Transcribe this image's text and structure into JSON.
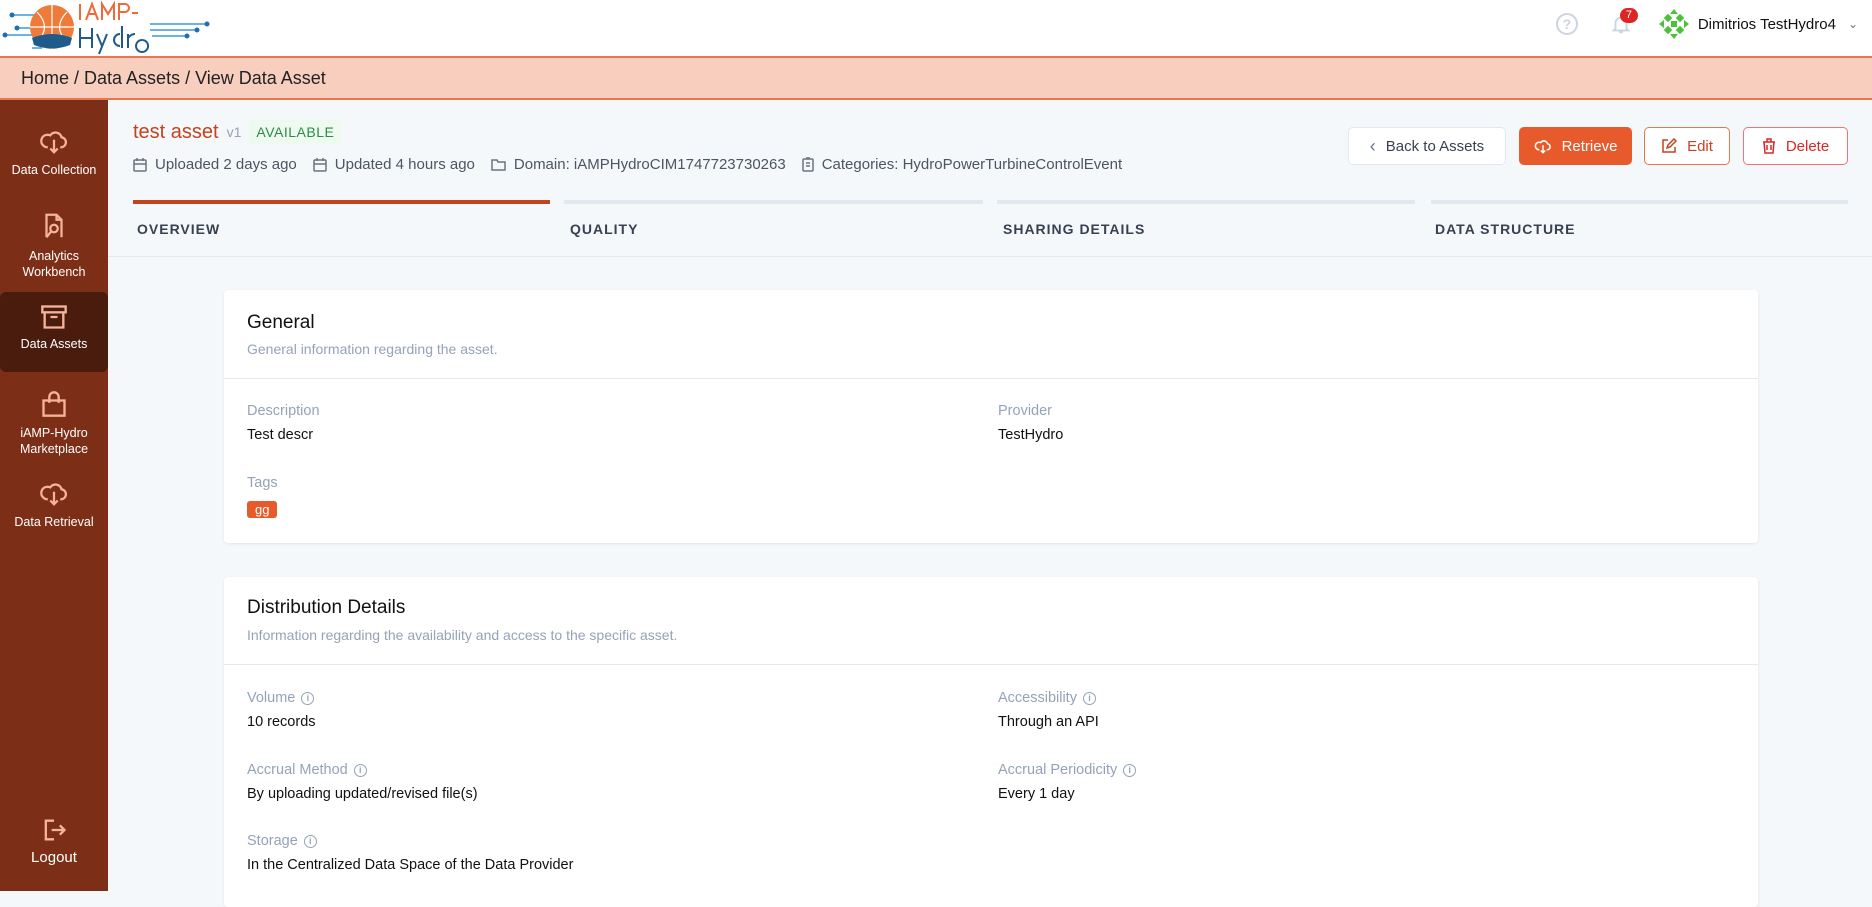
{
  "header": {
    "logo_text": "iAMP-Hydro",
    "notifications_count": "7",
    "user_name": "Dimitrios TestHydro4"
  },
  "breadcrumb": "Home / Data Assets / View Data Asset",
  "sidebar": {
    "items": [
      {
        "label": "Data Collection",
        "icon": "cloud-download-icon"
      },
      {
        "label": "Analytics Workbench",
        "icon": "file-search-icon"
      },
      {
        "label": "Data Assets",
        "icon": "archive-icon",
        "active": true
      },
      {
        "label": "iAMP-Hydro Marketplace",
        "icon": "shopping-bag-icon"
      },
      {
        "label": "Data Retrieval",
        "icon": "cloud-download-icon"
      }
    ],
    "logout": "Logout"
  },
  "asset": {
    "title": "test asset",
    "version": "v1",
    "status": "AVAILABLE",
    "uploaded": "Uploaded 2 days ago",
    "updated": "Updated 4 hours ago",
    "domain": "Domain: iAMPHydroCIM1747723730263",
    "categories": "Categories: HydroPowerTurbineControlEvent"
  },
  "actions": {
    "back": "Back to Assets",
    "retrieve": "Retrieve",
    "edit": "Edit",
    "delete": "Delete"
  },
  "tabs": [
    {
      "label": "OVERVIEW",
      "active": true
    },
    {
      "label": "QUALITY"
    },
    {
      "label": "SHARING DETAILS"
    },
    {
      "label": "DATA STRUCTURE"
    }
  ],
  "general": {
    "title": "General",
    "subtitle": "General information regarding the asset.",
    "description_label": "Description",
    "description": "Test descr",
    "provider_label": "Provider",
    "provider": "TestHydro",
    "tags_label": "Tags",
    "tags": [
      "gg"
    ]
  },
  "distribution": {
    "title": "Distribution Details",
    "subtitle": "Information regarding the availability and access to the specific asset.",
    "volume_label": "Volume",
    "volume": "10 records",
    "accessibility_label": "Accessibility",
    "accessibility": "Through an API",
    "accrual_method_label": "Accrual Method",
    "accrual_method": "By uploading updated/revised file(s)",
    "accrual_periodicity_label": "Accrual Periodicity",
    "accrual_periodicity": "Every 1 day",
    "storage_label": "Storage",
    "storage": "In the Centralized Data Space of the Data Provider"
  },
  "colors": {
    "brand": "#c2441f",
    "sidebar": "#7d2e17",
    "primary_button": "#e65a2c",
    "breadcrumb_bg": "#f8cfbe"
  }
}
